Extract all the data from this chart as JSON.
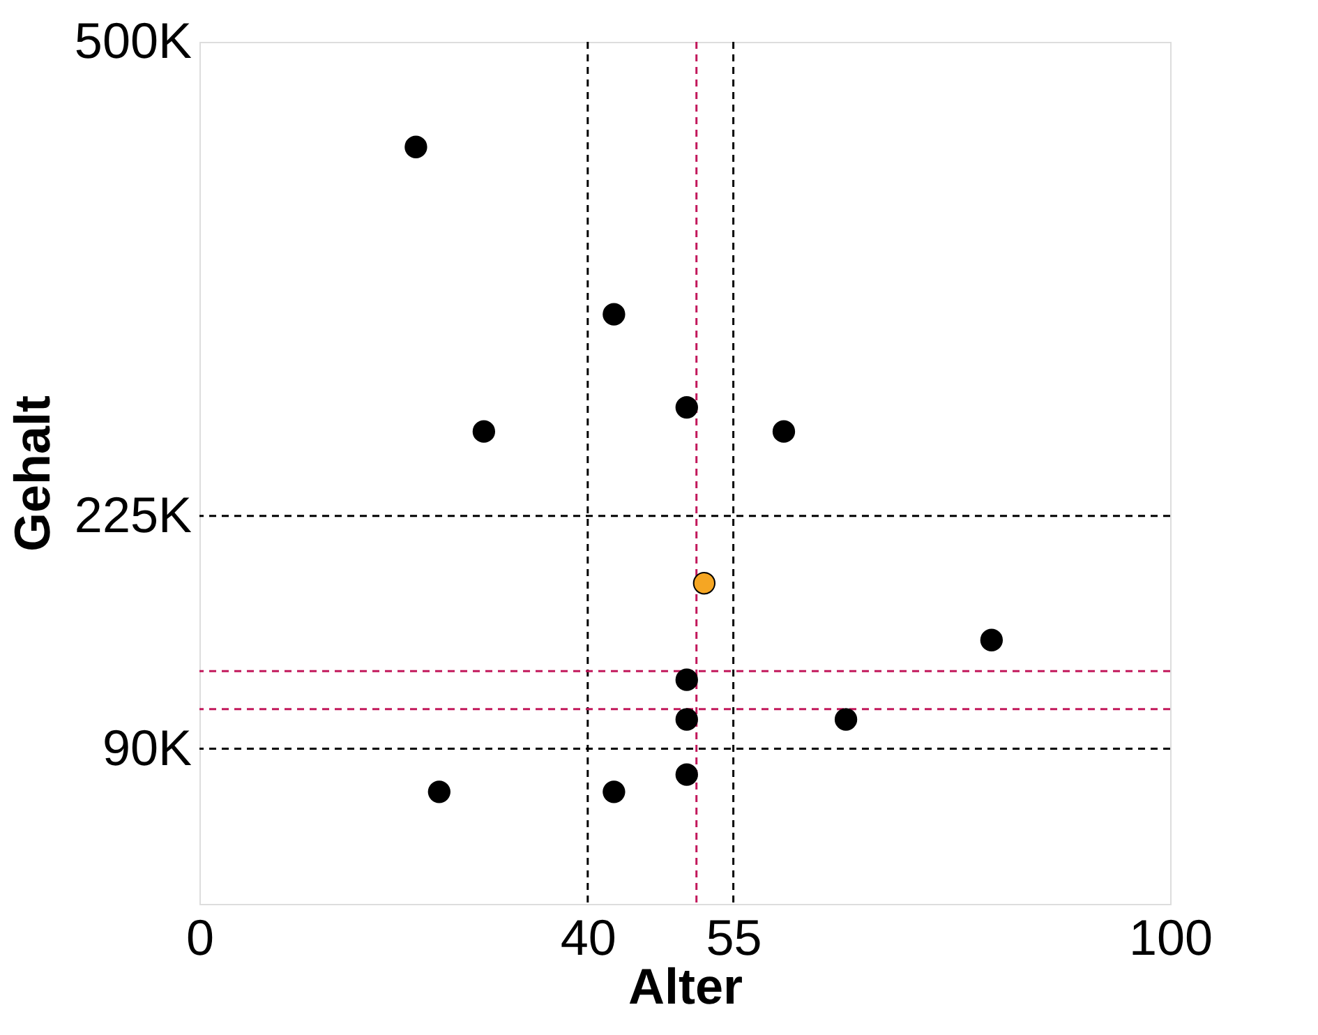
{
  "chart_data": {
    "type": "scatter",
    "xlabel": "Alter",
    "ylabel": "Gehalt",
    "xlim": [
      0,
      100
    ],
    "xticks": [
      0,
      40,
      55,
      100
    ],
    "ylim": [
      0,
      500000
    ],
    "yticks": [
      {
        "value": 90000,
        "label": "90K"
      },
      {
        "value": 225000,
        "label": "225K"
      },
      {
        "value": 500000,
        "label": "500K"
      }
    ],
    "marker": "circle",
    "grid": false,
    "series": [
      {
        "color": "#000000",
        "x": [
          22.3,
          42.7,
          29.3,
          50.2,
          60.2,
          81.6,
          50.2,
          50.2,
          66.6,
          50.2,
          24.7,
          42.7
        ],
        "values": [
          439000,
          342000,
          274000,
          288000,
          274000,
          153000,
          130000,
          107000,
          107000,
          75000,
          65000,
          65000
        ]
      },
      {
        "color": "#f5a623",
        "x": [
          52.0
        ],
        "values": [
          186000
        ]
      }
    ],
    "ref_lines": [
      {
        "axis": "x",
        "value": 40,
        "color": "#000000",
        "line_style": "dashed"
      },
      {
        "axis": "x",
        "value": 55,
        "color": "#000000",
        "line_style": "dashed"
      },
      {
        "axis": "y",
        "value": 90000,
        "color": "#000000",
        "line_style": "dashed"
      },
      {
        "axis": "y",
        "value": 225000,
        "color": "#000000",
        "line_style": "dashed"
      },
      {
        "axis": "x",
        "value": 51.2,
        "color": "#c2185b",
        "line_style": "dashed"
      },
      {
        "axis": "y",
        "value": 135000,
        "color": "#c2185b",
        "line_style": "dashed"
      },
      {
        "axis": "y",
        "value": 113000,
        "color": "#c2185b",
        "line_style": "dashed"
      }
    ]
  }
}
